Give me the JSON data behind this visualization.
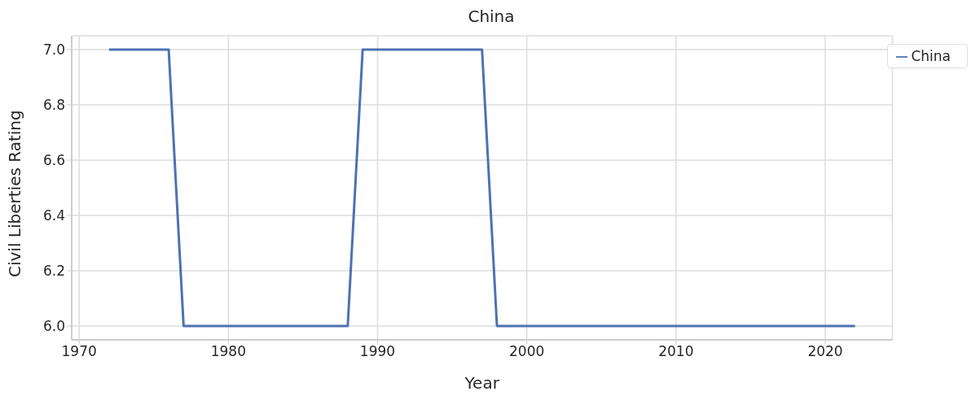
{
  "chart_data": {
    "type": "line",
    "title": "China",
    "xlabel": "Year",
    "ylabel": "Civil Liberties Rating",
    "series": [
      {
        "name": "China",
        "color": "#4c72b0",
        "x": [
          1972,
          1976,
          1977,
          1988,
          1989,
          1997,
          1998,
          2022
        ],
        "values": [
          7,
          7,
          6,
          6,
          7,
          7,
          6,
          6
        ]
      }
    ],
    "xlim": [
      1969.5,
      2024.5
    ],
    "xticks": [
      1970,
      1980,
      1990,
      2000,
      2010,
      2020
    ],
    "ylim": [
      5.95,
      7.05
    ],
    "yticks": [
      {
        "value": 6,
        "label": "6.0"
      },
      6.2,
      6.4,
      6.6,
      6.8,
      {
        "value": 7,
        "label": "7.0"
      }
    ],
    "grid": true,
    "legend": "top right",
    "marker": "none",
    "line_style": "solid"
  }
}
